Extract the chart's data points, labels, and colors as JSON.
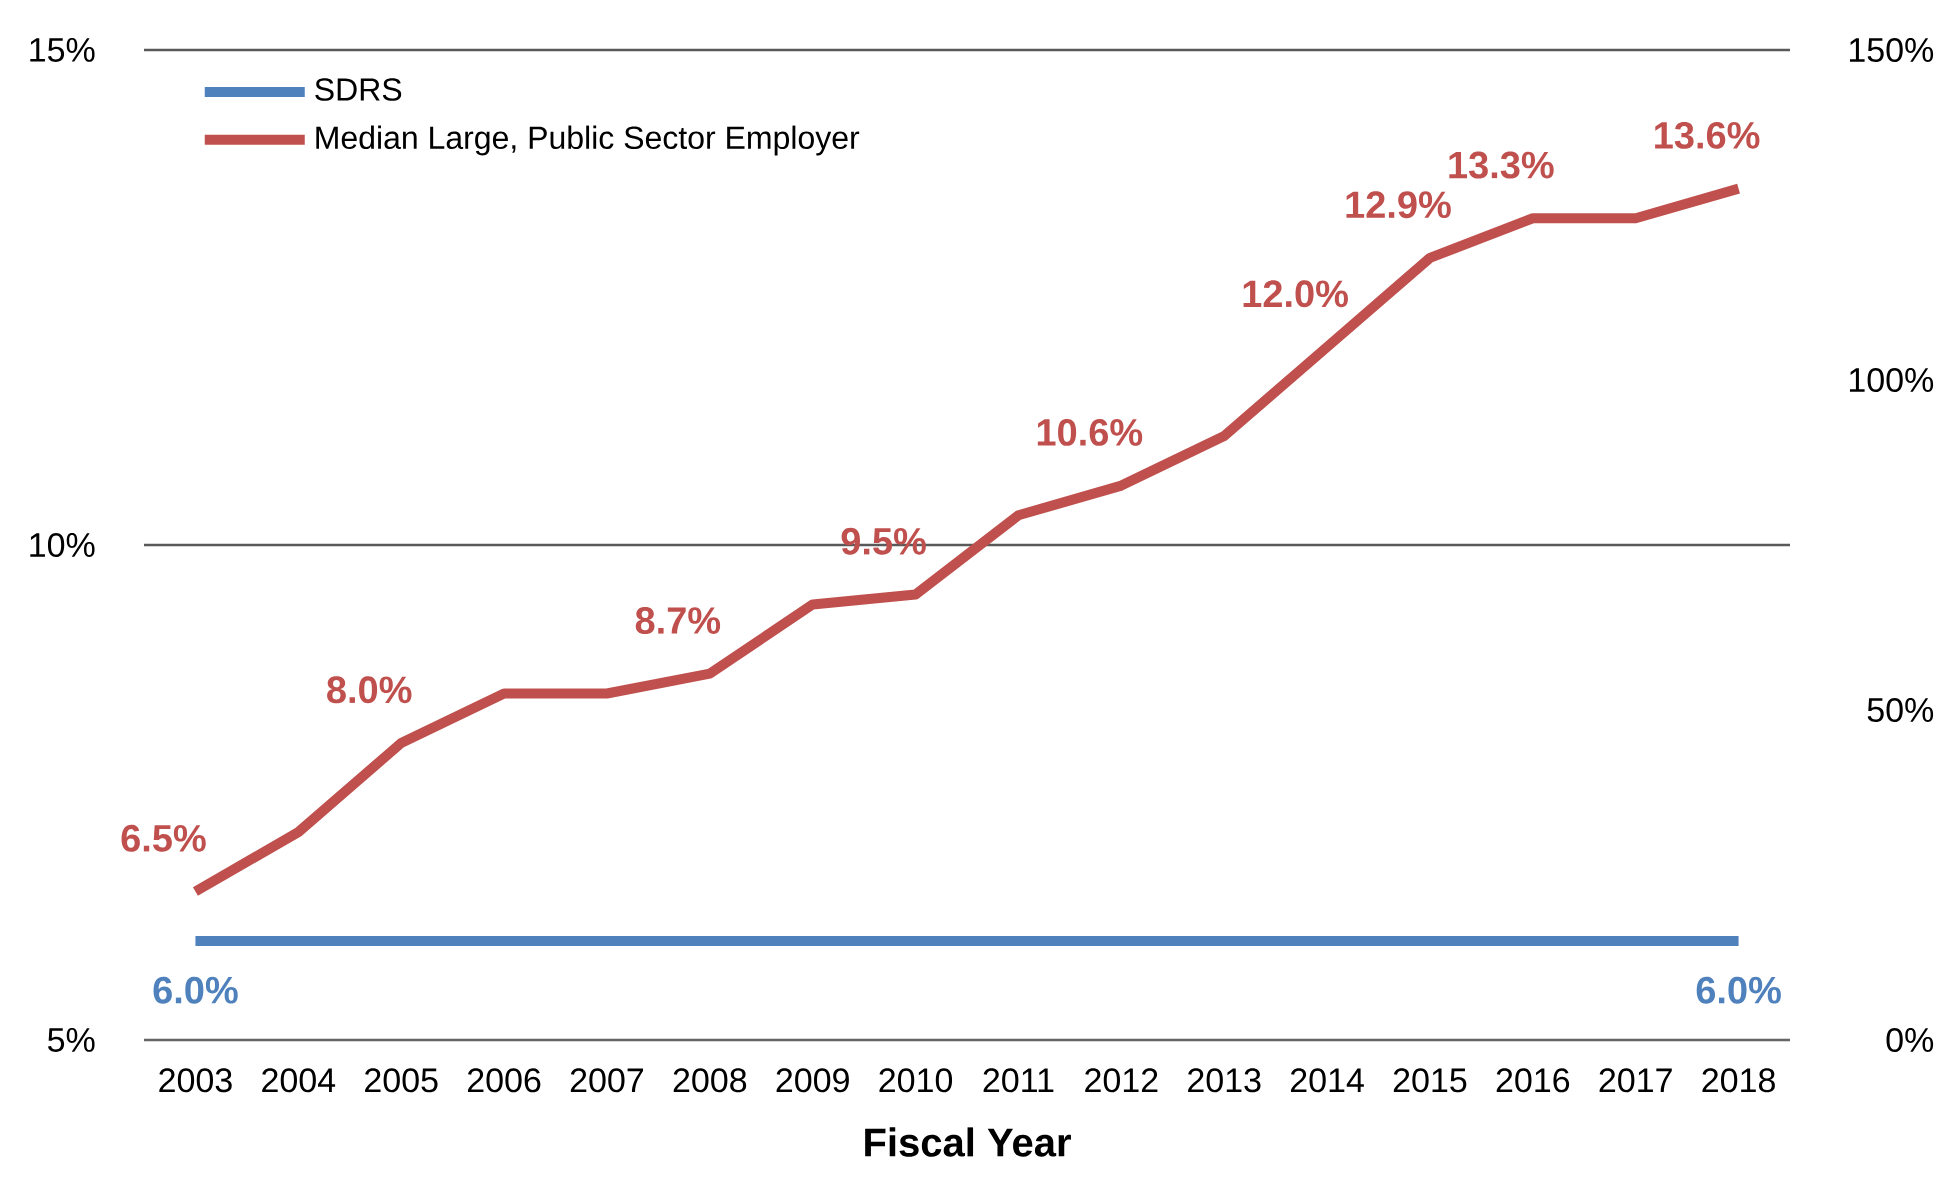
{
  "chart_data": {
    "type": "line",
    "xlabel": "Fiscal Year",
    "categories": [
      "2003",
      "2004",
      "2005",
      "2006",
      "2007",
      "2008",
      "2009",
      "2010",
      "2011",
      "2012",
      "2013",
      "2014",
      "2015",
      "2016",
      "2017",
      "2018"
    ],
    "series": [
      {
        "name": "SDRS",
        "color": "#4f81bd",
        "values": [
          6.0,
          6.0,
          6.0,
          6.0,
          6.0,
          6.0,
          6.0,
          6.0,
          6.0,
          6.0,
          6.0,
          6.0,
          6.0,
          6.0,
          6.0,
          6.0
        ],
        "value_labels": [
          "6.0%",
          null,
          null,
          null,
          null,
          null,
          null,
          null,
          null,
          null,
          null,
          null,
          null,
          null,
          null,
          "6.0%"
        ]
      },
      {
        "name": "Median Large, Public Sector Employer",
        "color": "#c0504d",
        "values": [
          6.5,
          7.1,
          8.0,
          8.5,
          8.5,
          8.7,
          9.4,
          9.5,
          10.3,
          10.6,
          11.1,
          12.0,
          12.9,
          13.3,
          13.3,
          13.6
        ],
        "value_labels": [
          "6.5%",
          null,
          "8.0%",
          null,
          null,
          "8.7%",
          null,
          "9.5%",
          null,
          "10.6%",
          null,
          "12.0%",
          "12.9%",
          "13.3%",
          null,
          "13.6%"
        ]
      }
    ],
    "ylim": [
      5,
      15
    ],
    "yticks": [
      {
        "value": 5,
        "label": "5%"
      },
      {
        "value": 10,
        "label": "10%"
      },
      {
        "value": 15,
        "label": "15%"
      }
    ],
    "y2lim": [
      0,
      150
    ],
    "y2ticks": [
      {
        "value": 0,
        "label": "0%"
      },
      {
        "value": 50,
        "label": "50%"
      },
      {
        "value": 100,
        "label": "100%"
      },
      {
        "value": 150,
        "label": "150%"
      }
    ],
    "grid": "y",
    "legend": "top left",
    "marker": "none",
    "line_style": "solid"
  }
}
